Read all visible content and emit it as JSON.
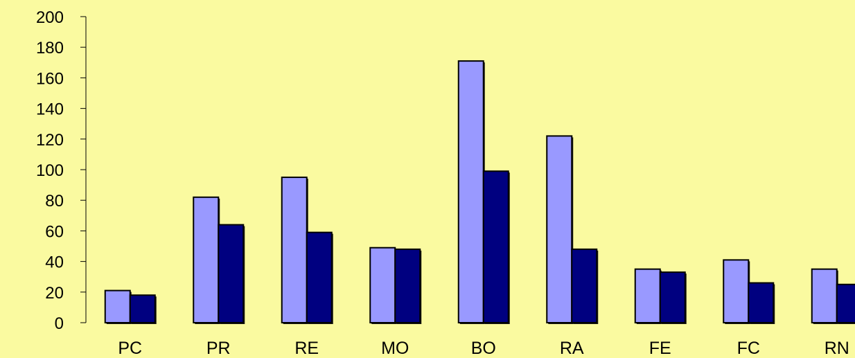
{
  "chart_data": {
    "type": "bar",
    "title": "",
    "xlabel": "",
    "ylabel": "",
    "ylim": [
      0,
      200
    ],
    "yticks": [
      0,
      20,
      40,
      60,
      80,
      100,
      120,
      140,
      160,
      180,
      200
    ],
    "grid": false,
    "legend": "none",
    "categories": [
      "PC",
      "PR",
      "RE",
      "MO",
      "BO",
      "RA",
      "FE",
      "FC",
      "RN"
    ],
    "series": [
      {
        "values": [
          21,
          82,
          95,
          49,
          171,
          122,
          35,
          41,
          35
        ],
        "color": "#9999FF"
      },
      {
        "values": [
          18,
          64,
          59,
          48,
          99,
          48,
          33,
          26,
          25
        ],
        "color": "#000080"
      }
    ],
    "colors": {
      "background": "#FAFAA0",
      "axis": "#000000",
      "bar_outline": "#000000"
    }
  }
}
